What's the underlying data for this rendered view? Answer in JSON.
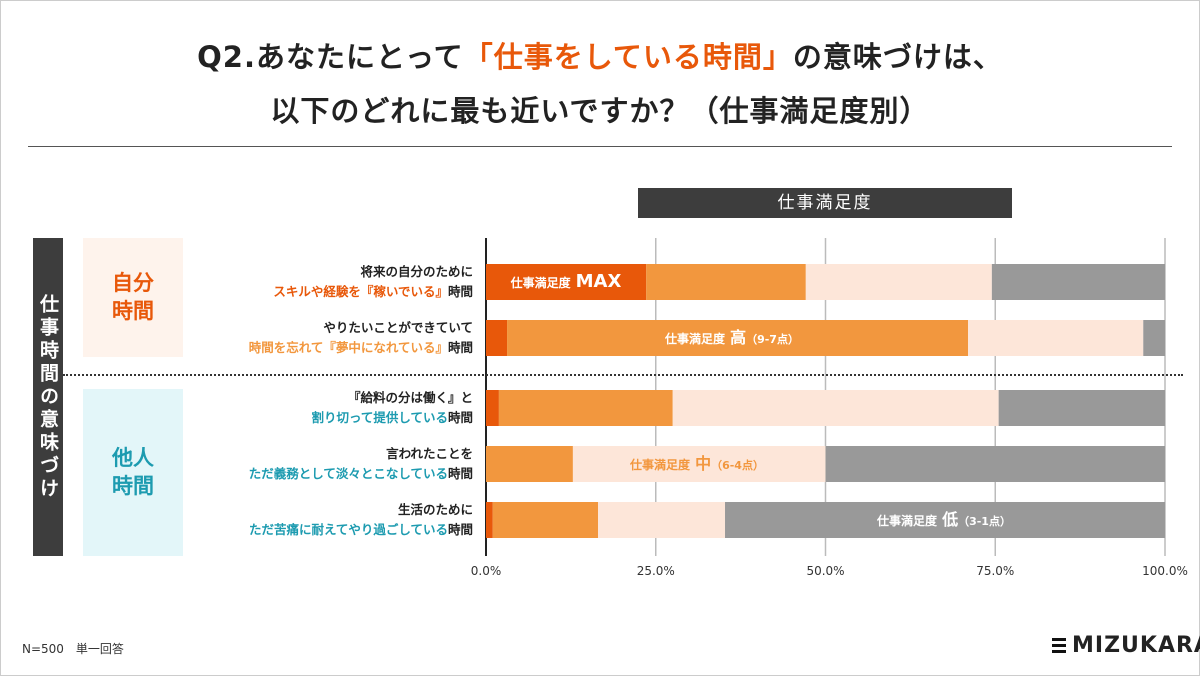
{
  "title": {
    "line1_pre": "Q2.あなたにとって",
    "line1_hl": "「仕事をしている時間」",
    "line1_post": "の意味づけは、",
    "line2": "以下のどれに最も近いですか？（仕事満足度別）"
  },
  "header": "仕事満足度",
  "vertical_label": "仕事時間の意味づけ",
  "groups": [
    {
      "label": "自分\n時間"
    },
    {
      "label": "他人\n時間"
    }
  ],
  "rows": [
    {
      "line1": "将来の自分のために",
      "hl": "スキルや経験を『稼いでいる』",
      "suffix": "時間"
    },
    {
      "line1": "やりたいことができていて",
      "hl": "時間を忘れて『夢中になれている』",
      "suffix": "時間"
    },
    {
      "line1": "『給料の分は働く』と",
      "hl": "割り切って提供している",
      "suffix": "時間"
    },
    {
      "line1": "言われたことを",
      "hl": "ただ義務として淡々とこなしている",
      "suffix": "時間"
    },
    {
      "line1": "生活のために",
      "hl": "ただ苦痛に耐えてやり過ごしている",
      "suffix": "時間"
    }
  ],
  "footnote": "N=500　単一回答",
  "logo": "MIZUKARA",
  "chart_data": {
    "type": "bar",
    "stacked": true,
    "orientation": "horizontal",
    "categories": [
      "スキルや経験を『稼いでいる』時間",
      "時間を忘れて『夢中になれている』時間",
      "割り切って提供している時間",
      "ただ義務として淡々とこなしている時間",
      "ただ苦痛に耐えてやり過ごしている時間"
    ],
    "series": [
      {
        "name": "仕事満足度 MAX",
        "label_main": "仕事満足度",
        "label_big": "MAX",
        "label_sub": "",
        "color": "#e8580a",
        "text_color": "#ffffff",
        "values": [
          23.6,
          3.1,
          1.9,
          0,
          1.0
        ]
      },
      {
        "name": "仕事満足度 高（9-7点）",
        "label_main": "仕事満足度",
        "label_big": "高",
        "label_sub": "（9-7点）",
        "color": "#f2973e",
        "text_color": "#ffffff",
        "values": [
          23.5,
          67.9,
          25.6,
          12.8,
          15.5
        ]
      },
      {
        "name": "仕事満足度 中（6-4点）",
        "label_main": "仕事満足度",
        "label_big": "中",
        "label_sub": "（6-4点）",
        "color": "#fde6d9",
        "text_color": "#f2973e",
        "values": [
          27.4,
          25.8,
          48.0,
          37.2,
          18.7
        ]
      },
      {
        "name": "仕事満足度 低（3-1点）",
        "label_main": "仕事満足度",
        "label_big": "低",
        "label_sub": "（3-1点）",
        "color": "#999999",
        "text_color": "#ffffff",
        "values": [
          25.5,
          3.2,
          24.5,
          50.0,
          64.8
        ]
      }
    ],
    "series_label_rows": [
      0,
      1,
      3,
      4
    ],
    "xlim": [
      0,
      100
    ],
    "xticks": [
      "0.0%",
      "25.0%",
      "50.0%",
      "75.0%",
      "100.0%"
    ],
    "grid": true
  }
}
